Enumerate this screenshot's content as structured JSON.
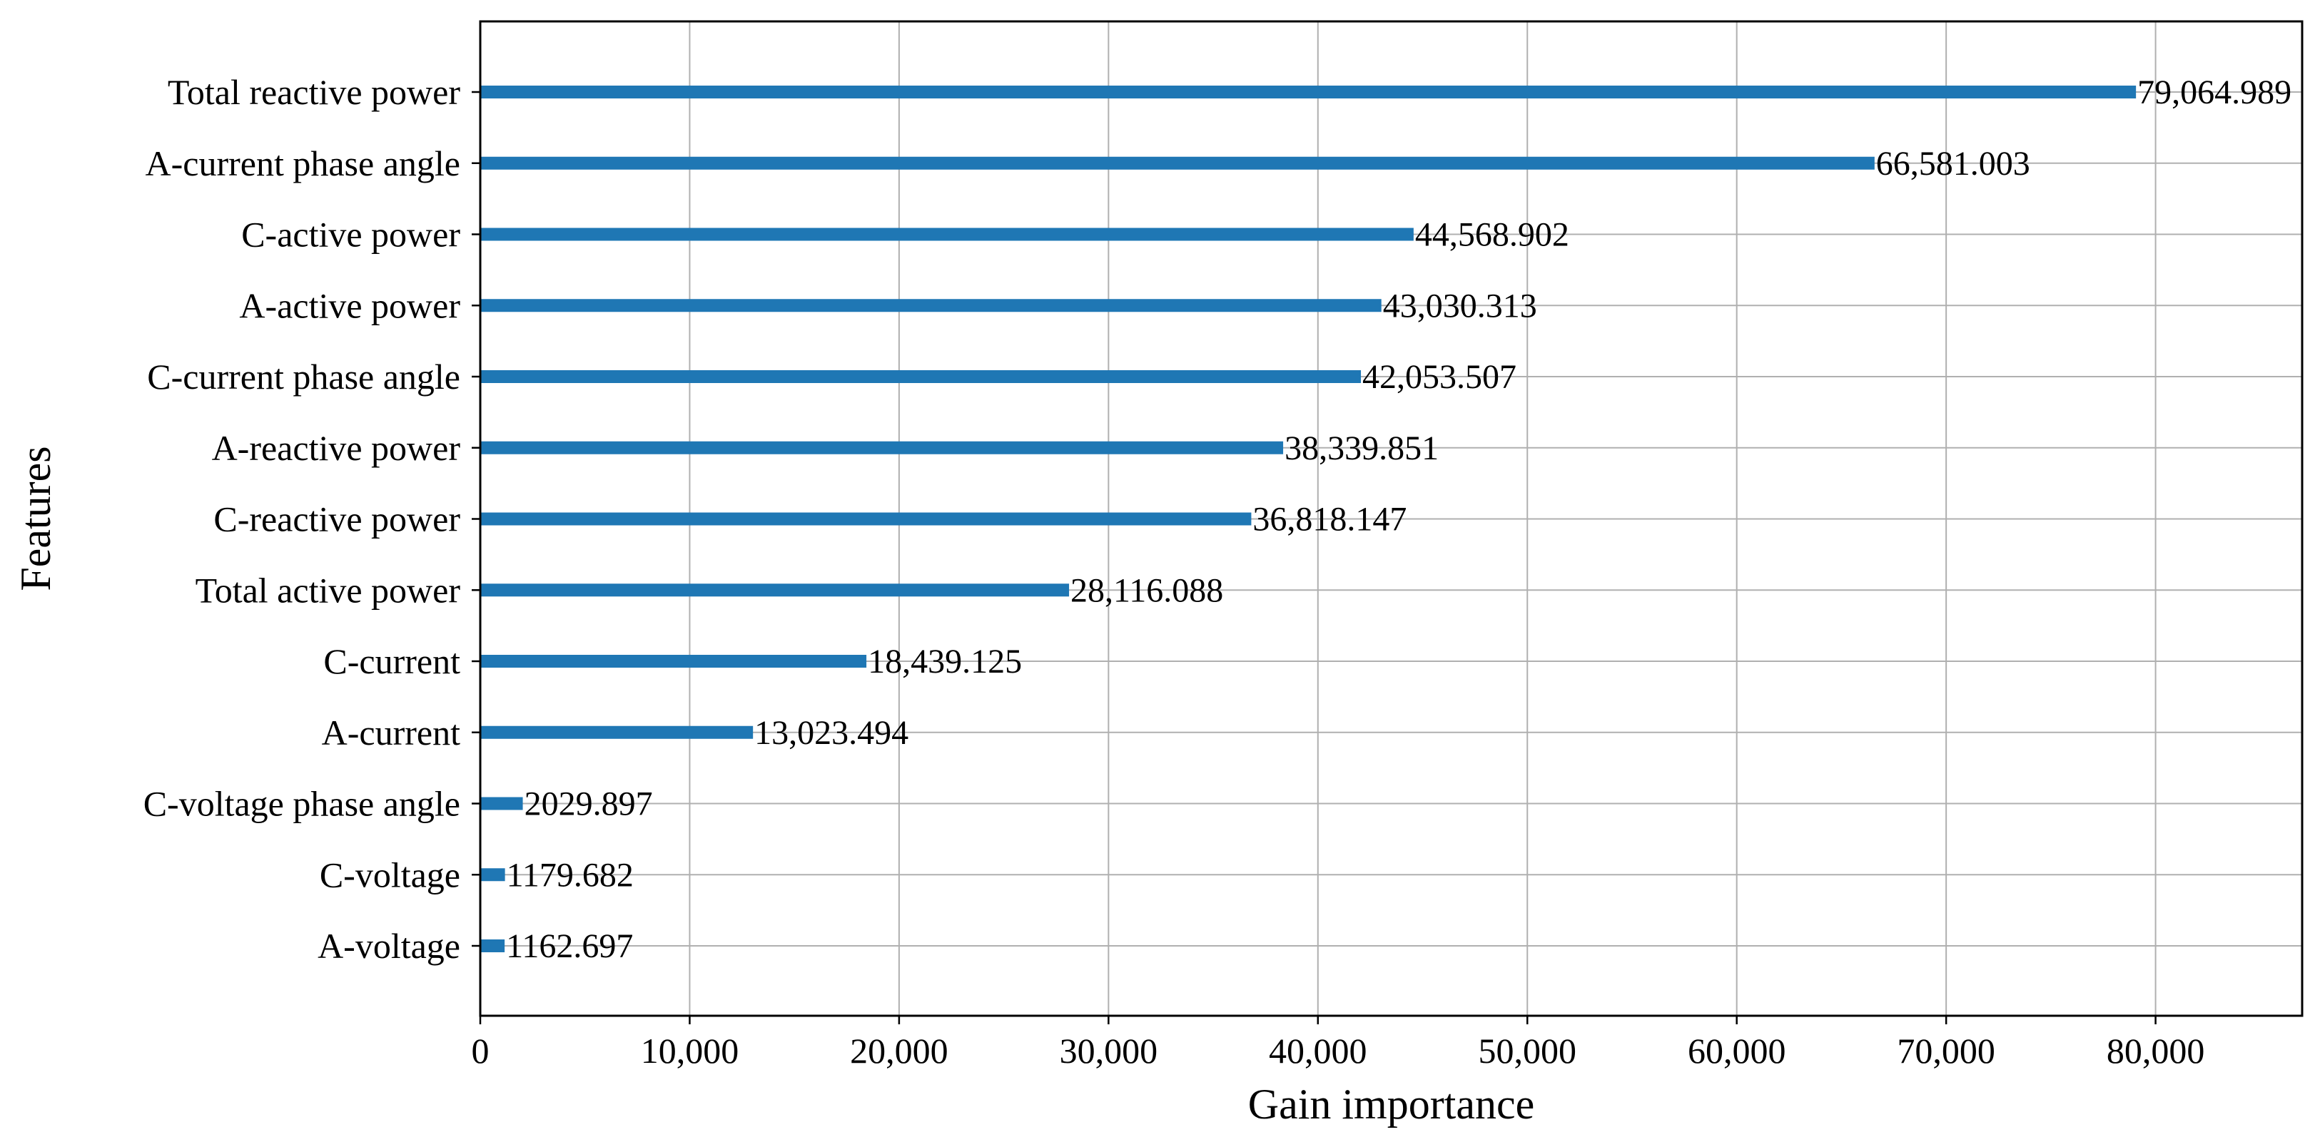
{
  "chart_data": {
    "type": "bar",
    "orientation": "horizontal",
    "title": "",
    "xlabel": "Gain importance",
    "ylabel": "Features",
    "xlim": [
      0,
      87000
    ],
    "xticks": [
      0,
      10000,
      20000,
      30000,
      40000,
      50000,
      60000,
      70000,
      80000
    ],
    "xtick_labels": [
      "0",
      "10,000",
      "20,000",
      "30,000",
      "40,000",
      "50,000",
      "60,000",
      "70,000",
      "80,000"
    ],
    "grid": true,
    "bar_color": "#1f77b4",
    "categories": [
      "Total reactive power",
      "A-current phase angle",
      "C-active power",
      "A-active power",
      "C-current phase angle",
      "A-reactive power",
      "C-reactive power",
      "Total active power",
      "C-current",
      "A-current",
      "C-voltage phase angle",
      "C-voltage",
      "A-voltage"
    ],
    "values": [
      79064.989,
      66581.003,
      44568.902,
      43030.313,
      42053.507,
      38339.851,
      36818.147,
      28116.088,
      18439.125,
      13023.494,
      2029.897,
      1179.682,
      1162.697
    ],
    "value_labels": [
      "79,064.989",
      "66,581.003",
      "44,568.902",
      "43,030.313",
      "42,053.507",
      "38,339.851",
      "36,818.147",
      "28,116.088",
      "18,439.125",
      "13,023.494",
      "2029.897",
      "1179.682",
      "1162.697"
    ]
  }
}
